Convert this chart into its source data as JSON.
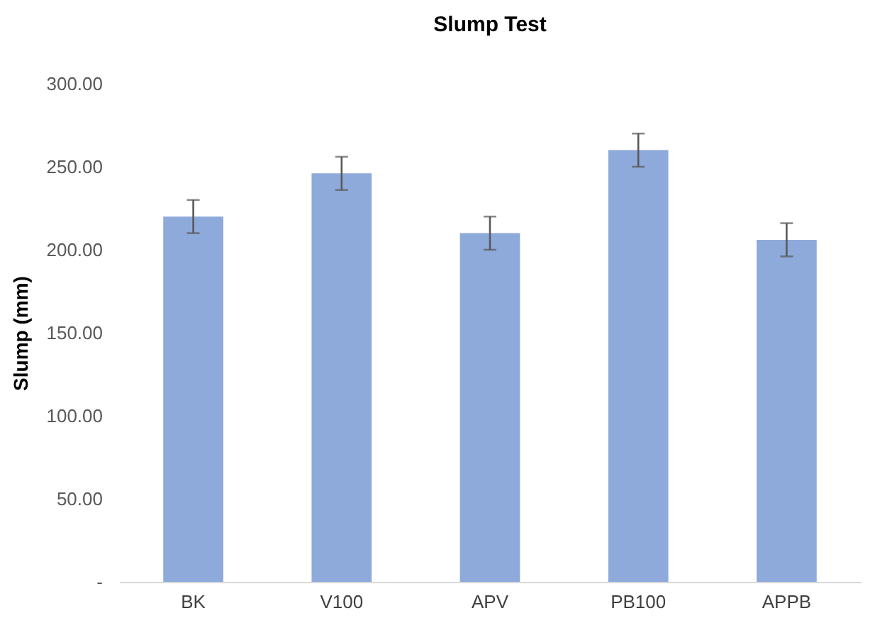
{
  "chart_data": {
    "type": "bar",
    "title": "Slump Test",
    "ylabel": "Slump (mm)",
    "categories": [
      "BK",
      "V100",
      "APV",
      "PB100",
      "APPB"
    ],
    "values": [
      220,
      246,
      210,
      260,
      206
    ],
    "errors": [
      10,
      10,
      10,
      10,
      10
    ],
    "color": "#8eaadb",
    "ylim": [
      0,
      300
    ],
    "yticks": [
      {
        "value": 0,
        "label": "-"
      },
      {
        "value": 50,
        "label": "50.00"
      },
      {
        "value": 100,
        "label": "100.00"
      },
      {
        "value": 150,
        "label": "150.00"
      },
      {
        "value": 200,
        "label": "200.00"
      },
      {
        "value": 250,
        "label": "250.00"
      },
      {
        "value": 300,
        "label": "300.00"
      }
    ],
    "grid": false
  }
}
